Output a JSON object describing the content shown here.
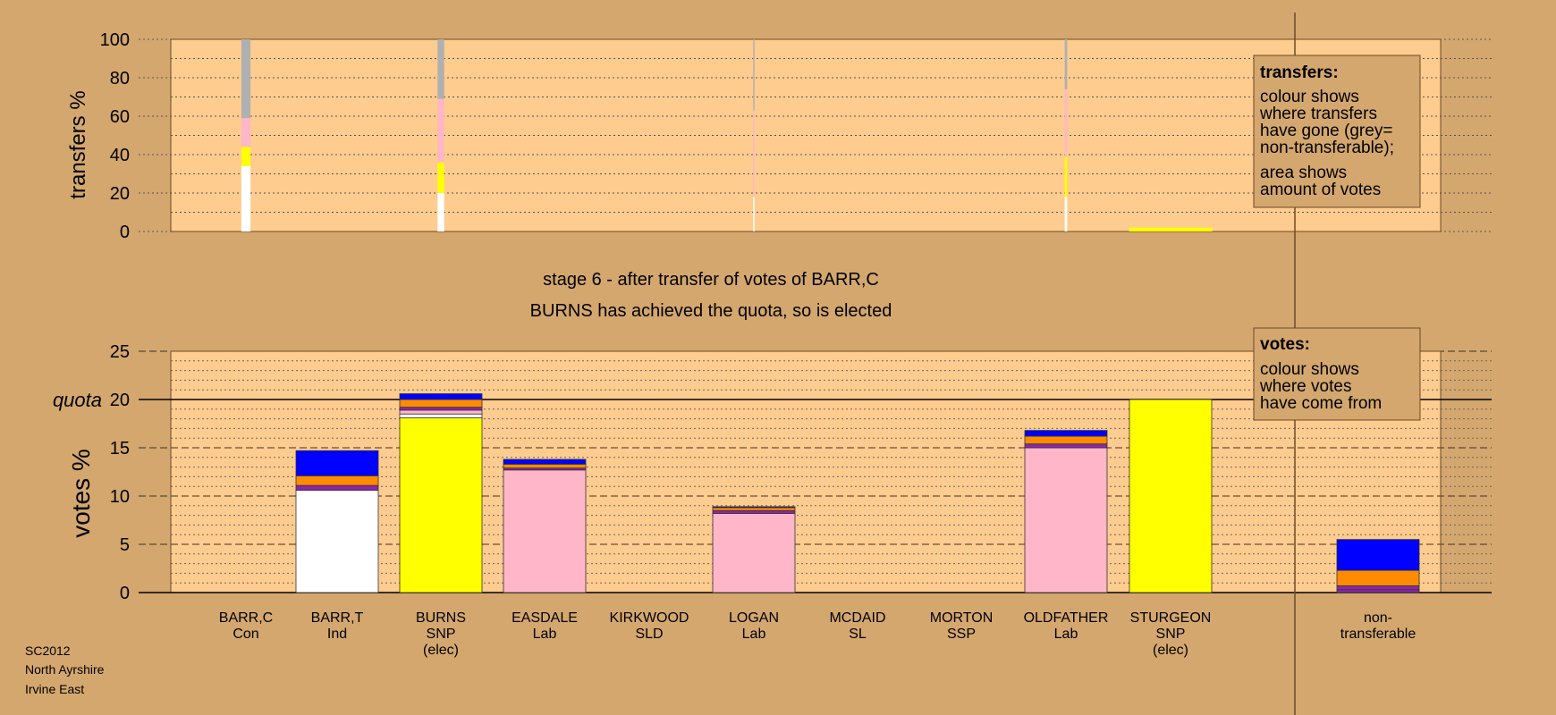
{
  "header": {
    "stage": "stage 6 - after transfer of votes of BARR,C",
    "status": "BURNS has achieved the quota, so is elected"
  },
  "source": [
    "SC2012",
    "North Ayrshire",
    "Irvine East"
  ],
  "legend_transfers": {
    "title": "transfers:",
    "lines1": [
      "colour shows",
      "where transfers",
      "have gone (grey=",
      "non-transferable);"
    ],
    "lines2": [
      "area shows",
      "amount of votes"
    ]
  },
  "legend_votes": {
    "title": "votes:",
    "lines": [
      "colour shows",
      "where votes",
      "have come from"
    ]
  },
  "colors": {
    "background": "#d4a76e",
    "plot": "#ffcc8f",
    "white": "#ffffff",
    "yellow": "#ffff00",
    "pink": "#ffb6c8",
    "grey": "#b0b0b0",
    "blue": "#0000ff",
    "orange": "#ff8c00",
    "purple": "#8e24aa",
    "red": "#cc2222"
  },
  "chart_data": [
    {
      "type": "bar",
      "ylabel": "transfers %",
      "ylim": [
        0,
        100
      ],
      "yticks": [
        0,
        20,
        40,
        60,
        80,
        100
      ],
      "grid": true,
      "bars": [
        {
          "candidate": "BARR,C",
          "width_share": 0.11,
          "segments": [
            {
              "color": "white",
              "value": 34
            },
            {
              "color": "yellow",
              "value": 10
            },
            {
              "color": "pink",
              "value": 15
            },
            {
              "color": "grey",
              "value": 41
            }
          ]
        },
        {
          "candidate": "BURNS",
          "width_share": 0.08,
          "segments": [
            {
              "color": "white",
              "value": 20
            },
            {
              "color": "yellow",
              "value": 16
            },
            {
              "color": "pink",
              "value": 33
            },
            {
              "color": "grey",
              "value": 31
            }
          ]
        },
        {
          "candidate": "LOGAN",
          "width_share": 0.01,
          "segments": [
            {
              "color": "white",
              "value": 18
            },
            {
              "color": "pink",
              "value": 45
            },
            {
              "color": "grey",
              "value": 37
            }
          ]
        },
        {
          "candidate": "OLDFATHER",
          "width_share": 0.03,
          "segments": [
            {
              "color": "white",
              "value": 18
            },
            {
              "color": "yellow",
              "value": 21
            },
            {
              "color": "pink",
              "value": 35
            },
            {
              "color": "grey",
              "value": 26
            }
          ]
        },
        {
          "candidate": "STURGEON",
          "width_share": 1.0,
          "segments": [
            {
              "color": "yellow",
              "value": 2
            }
          ]
        }
      ]
    },
    {
      "type": "bar",
      "ylabel": "votes %",
      "ylim": [
        0,
        25
      ],
      "yticks": [
        0,
        5,
        10,
        15,
        20,
        25
      ],
      "quota": 20,
      "quota_label": "quota",
      "grid": true,
      "categories": [
        {
          "name": "BARR,C",
          "party": "Con",
          "elected": ""
        },
        {
          "name": "BARR,T",
          "party": "Ind",
          "elected": ""
        },
        {
          "name": "BURNS",
          "party": "SNP",
          "elected": "(elec)"
        },
        {
          "name": "EASDALE",
          "party": "Lab",
          "elected": ""
        },
        {
          "name": "KIRKWOOD",
          "party": "SLD",
          "elected": ""
        },
        {
          "name": "LOGAN",
          "party": "Lab",
          "elected": ""
        },
        {
          "name": "MCDAID",
          "party": "SL",
          "elected": ""
        },
        {
          "name": "MORTON",
          "party": "SSP",
          "elected": ""
        },
        {
          "name": "OLDFATHER",
          "party": "Lab",
          "elected": ""
        },
        {
          "name": "STURGEON",
          "party": "SNP",
          "elected": "(elec)"
        }
      ],
      "nontransferable_label": [
        "non-",
        "transferable"
      ],
      "bars": [
        [],
        [
          {
            "color": "white",
            "value": 10.6
          },
          {
            "color": "purple",
            "value": 0.5
          },
          {
            "color": "orange",
            "value": 1.0
          },
          {
            "color": "blue",
            "value": 2.6
          }
        ],
        [
          {
            "color": "yellow",
            "value": 18.1
          },
          {
            "color": "white",
            "value": 0.4
          },
          {
            "color": "pink",
            "value": 0.4
          },
          {
            "color": "purple",
            "value": 0.3
          },
          {
            "color": "orange",
            "value": 0.8
          },
          {
            "color": "blue",
            "value": 0.6
          }
        ],
        [
          {
            "color": "pink",
            "value": 12.7
          },
          {
            "color": "purple",
            "value": 0.2
          },
          {
            "color": "orange",
            "value": 0.4
          },
          {
            "color": "blue",
            "value": 0.5
          }
        ],
        [],
        [
          {
            "color": "pink",
            "value": 8.2
          },
          {
            "color": "purple",
            "value": 0.3
          },
          {
            "color": "orange",
            "value": 0.3
          },
          {
            "color": "blue",
            "value": 0.1
          }
        ],
        [],
        [],
        [
          {
            "color": "pink",
            "value": 15.0
          },
          {
            "color": "purple",
            "value": 0.4
          },
          {
            "color": "orange",
            "value": 0.8
          },
          {
            "color": "blue",
            "value": 0.6
          }
        ],
        [
          {
            "color": "yellow",
            "value": 20.0
          }
        ]
      ],
      "nontransferable": [
        {
          "color": "purple",
          "value": 0.3
        },
        {
          "color": "purple",
          "value": 0.4
        },
        {
          "color": "orange",
          "value": 1.6
        },
        {
          "color": "blue",
          "value": 3.2
        }
      ]
    }
  ]
}
